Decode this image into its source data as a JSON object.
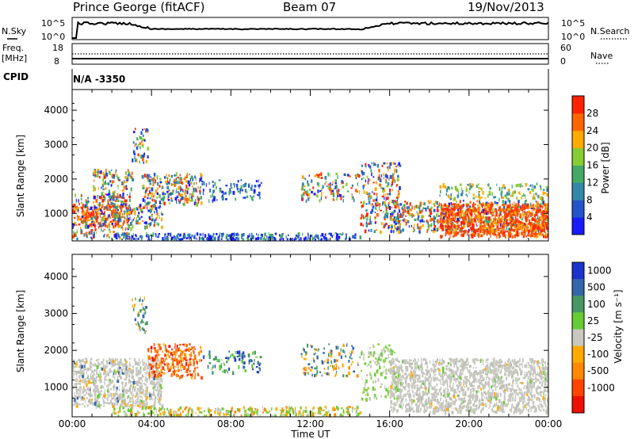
{
  "header": {
    "radar": "Prince George (fitACF)",
    "beam": "Beam 07",
    "date": "19/Nov/2013"
  },
  "strip": {
    "nsky_label": "N.Sky",
    "nsearch_label": "N.Search",
    "noise_ticks": [
      "10^5",
      "10^0"
    ],
    "freq_label_1": "Freq.",
    "freq_label_2": "[MHz]",
    "freq_ticks": [
      "18",
      "8"
    ],
    "nave_ticks": [
      "60",
      "0"
    ],
    "nave_label": "Nave",
    "cpid_label": "CPID",
    "cpid_value": "N/A  -3350"
  },
  "chart_data": [
    {
      "type": "heatmap",
      "name": "power",
      "ylabel": "Slant Range [km]",
      "xlabel": "Time UT",
      "x_ticks": [
        "00:00",
        "04:00",
        "08:00",
        "12:00",
        "16:00",
        "20:00",
        "00:00"
      ],
      "y_ticks": [
        "1000",
        "2000",
        "3000",
        "4000"
      ],
      "ylim": [
        200,
        4600
      ],
      "colorbar": {
        "label": "Power [dB]",
        "ticks": [
          "4",
          "8",
          "12",
          "16",
          "20",
          "24",
          "28"
        ],
        "colors": [
          "#1a1aff",
          "#2255cc",
          "#3388aa",
          "#44aa66",
          "#88cc33",
          "#ffaa00",
          "#ff6600",
          "#ff2200"
        ]
      }
    },
    {
      "type": "heatmap",
      "name": "velocity",
      "ylabel": "Slant Range [km]",
      "xlabel": "Time UT",
      "x_ticks": [
        "00:00",
        "04:00",
        "08:00",
        "12:00",
        "16:00",
        "20:00",
        "00:00"
      ],
      "y_ticks": [
        "1000",
        "2000",
        "3000",
        "4000"
      ],
      "ylim": [
        200,
        4600
      ],
      "colorbar": {
        "label": "Velocity [m s⁻¹]",
        "ticks": [
          "1000",
          "500",
          "100",
          "25",
          "-25",
          "-100",
          "-500",
          "-1000"
        ],
        "colors": [
          "#1a33cc",
          "#3366aa",
          "#449966",
          "#66cc33",
          "#c8c8c0",
          "#ffaa00",
          "#ff8800",
          "#ff4400",
          "#ee1100"
        ]
      }
    }
  ],
  "xaxis_label": "Time UT"
}
